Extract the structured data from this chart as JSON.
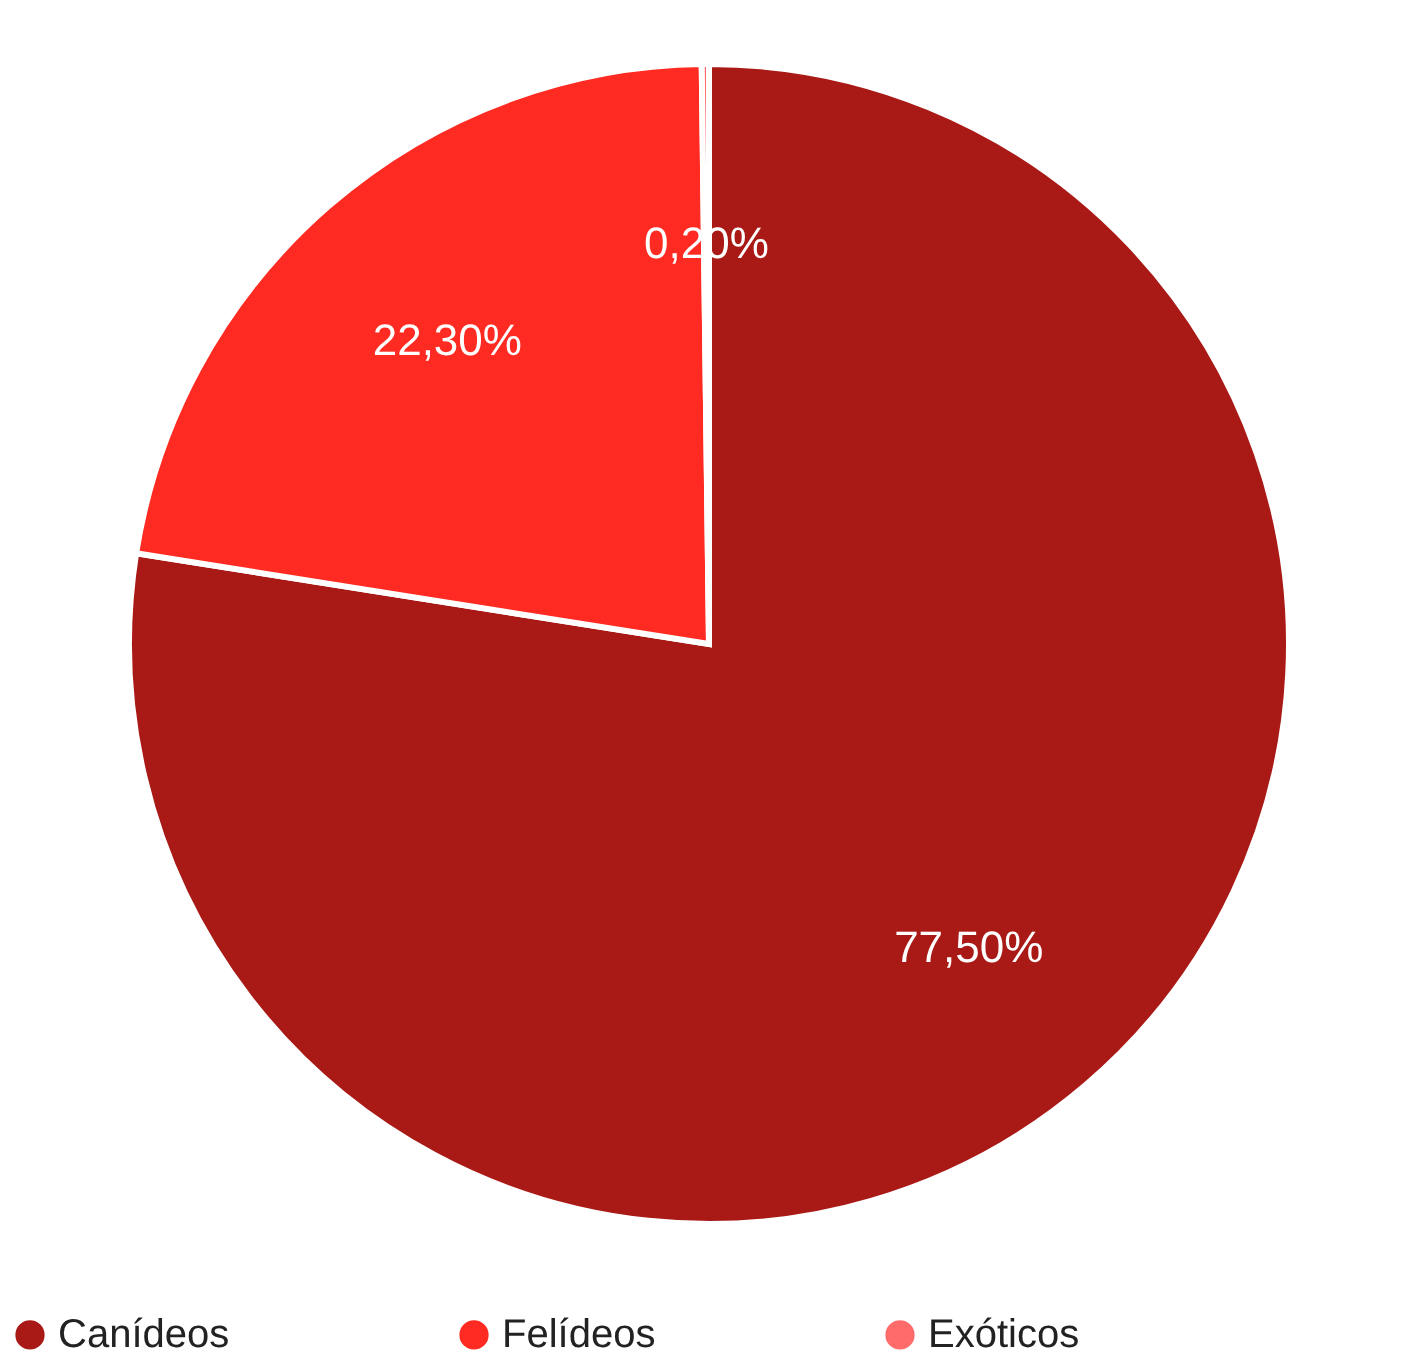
{
  "chart_data": {
    "type": "pie",
    "categories": [
      "Canídeos",
      "Felídeos",
      "Exóticos"
    ],
    "values": [
      77.5,
      22.3,
      0.2
    ],
    "colors": [
      "#a91916",
      "#ff2a22",
      "#ff6b6b"
    ],
    "value_labels": [
      "77,50%",
      "22,30%",
      "0,20%"
    ],
    "legend": "bottom"
  }
}
